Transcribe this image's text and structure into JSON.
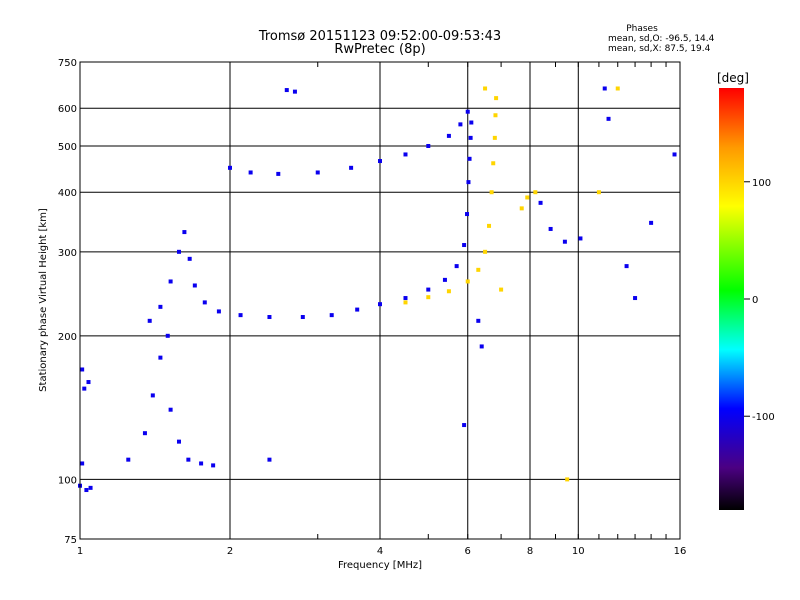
{
  "chart_data": {
    "type": "scatter",
    "title": "Tromsø 20151123 09:52:00-09:53:43",
    "subtitle": "RwPretec (8p)",
    "xlabel": "Frequency [MHz]",
    "ylabel": "Stationary phase Virtual Height [km]",
    "x_scale": "log",
    "y_scale": "log",
    "xlim": [
      1,
      16
    ],
    "ylim": [
      75,
      750
    ],
    "x_ticks": [
      1,
      2,
      4,
      6,
      8,
      10,
      16
    ],
    "y_ticks": [
      75,
      100,
      200,
      300,
      400,
      500,
      600,
      750
    ],
    "x_gridlines": [
      2,
      4,
      6,
      8,
      10
    ],
    "y_gridlines": [
      100,
      200,
      300,
      400,
      500,
      600
    ],
    "grid": true,
    "phase_stats": {
      "title": "Phases",
      "line_o": "mean, sd,O: -96.5, 14.4",
      "line_x": "mean, sd,X:  87.5, 19.4"
    },
    "colorbar": {
      "label": "[deg]",
      "range": [
        -180,
        180
      ],
      "ticks": [
        100,
        0,
        -100
      ]
    },
    "traces": [
      {
        "name": "",
        "phase": -100,
        "points": [
          [
            1.38,
            215
          ],
          [
            1.45,
            230
          ],
          [
            1.52,
            260
          ],
          [
            1.58,
            300
          ],
          [
            1.62,
            330
          ],
          [
            1.66,
            290
          ],
          [
            1.7,
            255
          ],
          [
            1.78,
            235
          ],
          [
            1.9,
            225
          ],
          [
            2.1,
            221
          ],
          [
            2.4,
            219
          ],
          [
            2.8,
            219
          ],
          [
            3.2,
            221
          ],
          [
            3.6,
            227
          ],
          [
            4.0,
            233
          ],
          [
            4.5,
            240
          ],
          [
            5.0,
            250
          ],
          [
            5.4,
            262
          ],
          [
            5.7,
            280
          ],
          [
            5.9,
            310
          ],
          [
            5.98,
            360
          ],
          [
            6.02,
            420
          ],
          [
            6.05,
            470
          ],
          [
            6.08,
            520
          ],
          [
            6.1,
            560
          ]
        ]
      },
      {
        "name": "",
        "phase": 100,
        "points": [
          [
            4.5,
            235
          ],
          [
            5.0,
            241
          ],
          [
            5.5,
            248
          ],
          [
            6.0,
            260
          ],
          [
            6.3,
            275
          ],
          [
            6.5,
            300
          ],
          [
            6.62,
            340
          ],
          [
            6.7,
            400
          ],
          [
            6.75,
            460
          ],
          [
            6.8,
            520
          ],
          [
            6.82,
            580
          ],
          [
            6.84,
            630
          ]
        ]
      },
      {
        "name": "",
        "phase": -100,
        "points": [
          [
            2.0,
            450
          ],
          [
            2.2,
            440
          ],
          [
            2.5,
            437
          ],
          [
            3.0,
            440
          ],
          [
            3.5,
            450
          ],
          [
            4.0,
            465
          ],
          [
            4.5,
            480
          ],
          [
            5.0,
            500
          ],
          [
            5.5,
            525
          ],
          [
            5.8,
            555
          ],
          [
            6.0,
            590
          ]
        ]
      },
      {
        "name": "",
        "phase": -100,
        "points": [
          [
            1.25,
            110
          ],
          [
            1.35,
            125
          ],
          [
            1.4,
            150
          ],
          [
            1.45,
            180
          ],
          [
            1.5,
            200
          ],
          [
            1.52,
            140
          ],
          [
            1.58,
            120
          ],
          [
            1.65,
            110
          ],
          [
            1.75,
            108
          ],
          [
            1.85,
            107
          ]
        ]
      },
      {
        "name": "",
        "phase": -100,
        "points": [
          [
            1.0,
            97
          ],
          [
            1.03,
            95
          ],
          [
            1.05,
            96
          ],
          [
            1.01,
            108
          ],
          [
            1.02,
            155
          ],
          [
            1.04,
            160
          ],
          [
            1.01,
            170
          ]
        ]
      },
      {
        "name": "",
        "phase": 100,
        "points": [
          [
            7.7,
            370
          ],
          [
            7.9,
            390
          ],
          [
            8.2,
            400
          ],
          [
            7.0,
            250
          ],
          [
            6.5,
            660
          ],
          [
            12.0,
            660
          ],
          [
            11.0,
            400
          ],
          [
            9.5,
            100
          ]
        ]
      },
      {
        "name": "",
        "phase": -100,
        "points": [
          [
            8.4,
            380
          ],
          [
            8.8,
            335
          ],
          [
            9.4,
            315
          ],
          [
            10.1,
            320
          ],
          [
            11.3,
            660
          ],
          [
            11.5,
            570
          ],
          [
            12.5,
            280
          ],
          [
            13.0,
            240
          ],
          [
            14.0,
            345
          ],
          [
            15.6,
            480
          ],
          [
            2.6,
            655
          ],
          [
            2.7,
            650
          ],
          [
            6.3,
            215
          ],
          [
            6.4,
            190
          ],
          [
            5.9,
            130
          ],
          [
            2.4,
            110
          ]
        ]
      }
    ]
  }
}
